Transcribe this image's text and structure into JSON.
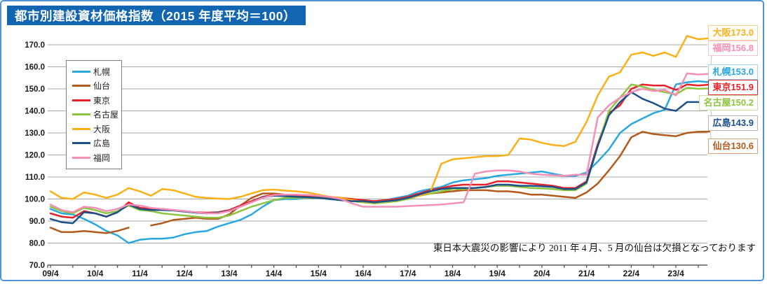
{
  "title": "都市別建設資材価格指数（2015 年度平均＝100）",
  "note": "東日本大震災の影響により 2011 年 4 月、5 月の仙台は欠損となっております",
  "chart_data": {
    "type": "line",
    "title": "都市別建設資材価格指数（2015 年度平均＝100）",
    "x_axis": {
      "start": "2009/04",
      "end": "2024/01",
      "sample_interval_months": 3,
      "tick_labels": [
        "09/4",
        "10/4",
        "11/4",
        "12/4",
        "13/4",
        "14/4",
        "15/4",
        "16/4",
        "17/4",
        "18/4",
        "19/4",
        "20/4",
        "21/4",
        "22/4",
        "23/4"
      ],
      "minor_tick_months": 6
    },
    "y_axis": {
      "min": 70,
      "max": 170,
      "step": 10,
      "tick_labels": [
        "70.0",
        "80.0",
        "90.0",
        "100.0",
        "110.0",
        "120.0",
        "130.0",
        "140.0",
        "150.0",
        "160.0",
        "170.0"
      ]
    },
    "grid": "horizontal",
    "legend_position": "upper-left-inside",
    "legend_order": [
      "sapporo",
      "sendai",
      "tokyo",
      "nagoya",
      "osaka",
      "hiroshima",
      "fukuoka"
    ],
    "callout_order": [
      "osaka",
      "fukuoka",
      "sapporo",
      "tokyo",
      "nagoya",
      "hiroshima",
      "sendai"
    ],
    "series": [
      {
        "key": "sapporo",
        "name": "札幌",
        "color": "#29a8e0",
        "label_border": "#9ed6f0",
        "end_value_text": "153.0",
        "values": [
          95.5,
          93.5,
          93.0,
          91.0,
          88.5,
          85.5,
          83.5,
          80.0,
          81.5,
          82.0,
          82.0,
          82.5,
          84.0,
          85.0,
          85.5,
          87.5,
          89.0,
          90.5,
          93.0,
          96.5,
          99.5,
          100.0,
          100.0,
          100.5,
          100.5,
          100.0,
          100.0,
          99.5,
          99.5,
          99.0,
          99.5,
          100.5,
          101.5,
          103.5,
          104.5,
          105.5,
          107.5,
          108.5,
          109.0,
          109.5,
          110.5,
          111.0,
          111.5,
          112.0,
          112.5,
          111.5,
          110.5,
          110.5,
          112.0,
          117.0,
          122.5,
          130.0,
          134.0,
          136.5,
          139.0,
          140.5,
          152.0,
          153.0,
          153.5,
          153.0
        ]
      },
      {
        "key": "sendai",
        "name": "仙台",
        "color": "#b25a1b",
        "label_border": "#d3a277",
        "end_value_text": "130.6",
        "values": [
          87.0,
          85.0,
          85.0,
          85.5,
          85.0,
          84.5,
          85.5,
          87.0,
          null,
          88.0,
          89.0,
          90.5,
          91.0,
          91.5,
          91.0,
          91.0,
          93.0,
          97.0,
          100.5,
          102.5,
          102.5,
          102.0,
          101.5,
          101.5,
          101.0,
          100.5,
          100.0,
          99.5,
          99.0,
          99.0,
          99.5,
          100.0,
          101.0,
          101.5,
          102.5,
          103.0,
          103.5,
          104.0,
          104.0,
          104.0,
          103.5,
          103.5,
          103.0,
          102.0,
          102.0,
          101.5,
          101.0,
          100.5,
          103.0,
          107.0,
          113.0,
          119.5,
          128.0,
          130.5,
          129.5,
          129.0,
          128.5,
          130.0,
          130.5,
          130.6
        ]
      },
      {
        "key": "tokyo",
        "name": "東京",
        "color": "#e62129",
        "label_border": "#e62129",
        "end_value_text": "151.9",
        "values": [
          93.5,
          92.0,
          91.5,
          94.5,
          93.5,
          92.0,
          94.0,
          98.5,
          96.0,
          95.5,
          95.5,
          95.0,
          94.5,
          94.0,
          93.8,
          94.0,
          95.0,
          97.0,
          99.0,
          101.0,
          102.0,
          102.0,
          101.8,
          101.5,
          101.5,
          101.0,
          100.5,
          100.0,
          99.5,
          99.0,
          99.5,
          100.0,
          101.0,
          102.5,
          104.0,
          105.0,
          106.0,
          106.5,
          106.5,
          106.5,
          108.0,
          108.0,
          107.5,
          107.0,
          106.5,
          106.0,
          105.0,
          105.0,
          108.0,
          125.0,
          139.0,
          142.5,
          150.0,
          152.0,
          151.5,
          151.5,
          149.5,
          152.0,
          151.5,
          151.9
        ]
      },
      {
        "key": "nagoya",
        "name": "名古屋",
        "color": "#8cc540",
        "label_border": "#c4e29a",
        "end_value_text": "150.2",
        "values": [
          96.5,
          94.5,
          93.5,
          96.0,
          95.0,
          93.5,
          94.5,
          97.0,
          95.0,
          94.5,
          93.5,
          93.0,
          92.5,
          92.0,
          91.5,
          91.5,
          92.5,
          94.5,
          96.5,
          98.0,
          99.5,
          100.5,
          100.5,
          100.5,
          100.5,
          100.0,
          99.5,
          99.0,
          98.5,
          98.0,
          98.5,
          99.0,
          100.0,
          101.5,
          102.5,
          103.5,
          104.5,
          104.5,
          105.0,
          105.5,
          106.0,
          106.0,
          105.5,
          105.0,
          104.8,
          104.5,
          104.0,
          104.0,
          107.0,
          124.0,
          140.0,
          146.0,
          152.0,
          151.0,
          149.5,
          148.5,
          147.5,
          150.5,
          150.0,
          150.2
        ]
      },
      {
        "key": "osaka",
        "name": "大阪",
        "color": "#fbb116",
        "label_border": "#f7d28e",
        "end_value_text": "173.0",
        "values": [
          103.5,
          100.5,
          100.0,
          103.0,
          102.0,
          100.5,
          102.0,
          105.0,
          103.5,
          101.5,
          104.5,
          104.0,
          102.5,
          101.0,
          100.5,
          100.2,
          100.0,
          101.0,
          102.5,
          104.0,
          104.3,
          103.8,
          103.5,
          103.0,
          102.0,
          101.0,
          100.5,
          99.5,
          98.8,
          98.5,
          99.0,
          99.5,
          100.5,
          101.5,
          103.0,
          116.0,
          118.0,
          118.5,
          119.0,
          119.5,
          119.5,
          120.0,
          127.5,
          127.0,
          125.5,
          124.5,
          124.0,
          126.0,
          135.0,
          147.0,
          155.5,
          157.5,
          165.5,
          166.5,
          165.0,
          166.5,
          164.5,
          174.0,
          172.5,
          173.0
        ]
      },
      {
        "key": "hiroshima",
        "name": "広島",
        "color": "#1c5088",
        "label_border": "#b5b5b5",
        "end_value_text": "143.9",
        "values": [
          91.0,
          89.5,
          89.0,
          94.0,
          93.5,
          92.0,
          94.0,
          97.5,
          95.5,
          95.0,
          95.0,
          94.8,
          94.3,
          93.8,
          93.5,
          93.8,
          94.5,
          96.5,
          98.5,
          100.8,
          101.5,
          101.3,
          101.0,
          100.8,
          100.5,
          100.0,
          99.5,
          99.0,
          99.0,
          98.5,
          99.0,
          99.5,
          100.5,
          102.0,
          103.5,
          104.5,
          105.0,
          105.0,
          105.0,
          105.5,
          106.5,
          106.5,
          106.0,
          106.0,
          105.8,
          105.5,
          104.5,
          104.5,
          107.5,
          124.0,
          138.0,
          144.0,
          148.5,
          145.5,
          143.5,
          141.0,
          140.0,
          144.0,
          144.0,
          143.9
        ]
      },
      {
        "key": "fukuoka",
        "name": "福岡",
        "color": "#f48fb8",
        "label_border": "#f8c2d9",
        "end_value_text": "156.8",
        "values": [
          97.5,
          95.0,
          94.0,
          96.5,
          96.0,
          94.5,
          95.5,
          97.5,
          97.0,
          96.0,
          95.5,
          95.0,
          94.5,
          94.0,
          93.5,
          93.5,
          94.5,
          96.5,
          98.5,
          100.5,
          101.8,
          102.0,
          102.0,
          101.8,
          101.5,
          101.0,
          100.0,
          98.0,
          96.5,
          96.5,
          96.5,
          96.5,
          96.8,
          97.0,
          97.2,
          97.5,
          98.0,
          98.5,
          111.5,
          112.5,
          113.0,
          113.0,
          112.5,
          111.5,
          111.0,
          110.8,
          110.5,
          111.0,
          111.0,
          137.0,
          142.5,
          146.0,
          148.5,
          150.0,
          149.0,
          149.5,
          147.0,
          157.0,
          156.5,
          156.8
        ]
      }
    ]
  }
}
